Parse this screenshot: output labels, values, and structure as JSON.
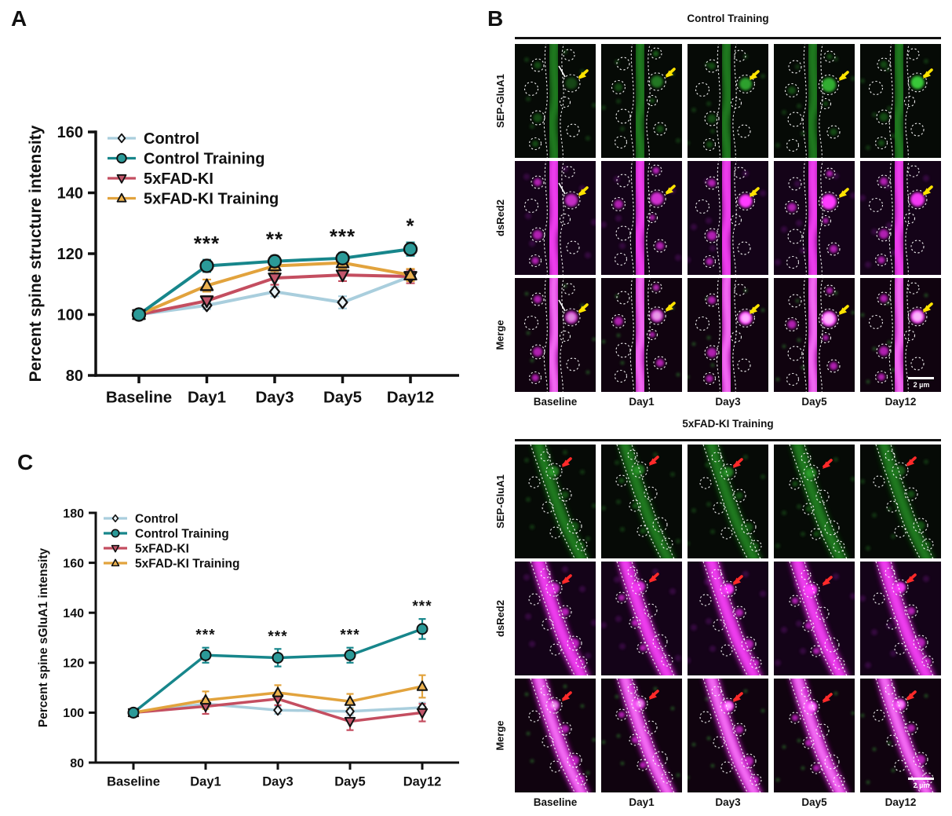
{
  "panels": {
    "a": {
      "label": "A"
    },
    "b": {
      "label": "B",
      "figures": [
        {
          "title": "Control Training",
          "orientation": "vertical",
          "arrow_color": "#ffe400",
          "rows": [
            "SEP-GluA1",
            "dsRed2",
            "Merge"
          ],
          "columns": [
            "Baseline",
            "Day1",
            "Day3",
            "Day5",
            "Day12"
          ],
          "scale_bar": "2 µm"
        },
        {
          "title": "5xFAD-KI Training",
          "orientation": "diagonal",
          "arrow_color": "#ff2a2a",
          "rows": [
            "SEP-GluA1",
            "dsRed2",
            "Merge"
          ],
          "columns": [
            "Baseline",
            "Day1",
            "Day3",
            "Day5",
            "Day12"
          ],
          "scale_bar": "2 µm"
        }
      ],
      "channel_colors": {
        "green": "#2fa12f",
        "magenta": "#e82ce8"
      }
    },
    "c": {
      "label": "C"
    }
  },
  "chart_data": [
    {
      "panel": "A",
      "type": "line",
      "title": "",
      "xlabel": "",
      "ylabel": "Percent spine structure intensity",
      "categories": [
        "Baseline",
        "Day1",
        "Day3",
        "Day5",
        "Day12"
      ],
      "ylim": [
        80,
        160
      ],
      "yticks": [
        80,
        100,
        120,
        140,
        160
      ],
      "grid": false,
      "legend_position": "top-left-inside",
      "series": [
        {
          "name": "Control",
          "color": "#a9cedd",
          "marker": "diamond",
          "marker_fill": "#eaf4f8",
          "values": [
            100,
            103,
            107.5,
            104,
            112.5
          ],
          "errors": [
            0.8,
            1.2,
            1.5,
            2,
            1.5
          ]
        },
        {
          "name": "Control Training",
          "color": "#17868b",
          "marker": "circle",
          "marker_fill": "#2b9a98",
          "values": [
            100,
            116,
            117.5,
            118.5,
            121.5
          ],
          "errors": [
            0.8,
            2,
            1.8,
            1.8,
            2.2
          ]
        },
        {
          "name": "5xFAD-KI",
          "color": "#c44e60",
          "marker": "triangle-down",
          "marker_fill": "#c2566b",
          "values": [
            100,
            104.5,
            112,
            113,
            112.5
          ],
          "errors": [
            0.8,
            1.5,
            2.2,
            2,
            2.2
          ]
        },
        {
          "name": "5xFAD-KI Training",
          "color": "#e2a33d",
          "marker": "triangle-up",
          "marker_fill": "#ecb24f",
          "values": [
            100,
            109.5,
            116,
            117,
            113
          ],
          "errors": [
            0.8,
            2,
            1.8,
            2,
            2
          ]
        }
      ],
      "significance": [
        {
          "category": "Day1",
          "label": "***"
        },
        {
          "category": "Day3",
          "label": "**"
        },
        {
          "category": "Day5",
          "label": "***"
        },
        {
          "category": "Day12",
          "label": "*"
        }
      ]
    },
    {
      "panel": "C",
      "type": "line",
      "title": "",
      "xlabel": "",
      "ylabel": "Percent spine sGluA1 intensity",
      "categories": [
        "Baseline",
        "Day1",
        "Day3",
        "Day5",
        "Day12"
      ],
      "ylim": [
        80,
        180
      ],
      "yticks": [
        80,
        100,
        120,
        140,
        160,
        180
      ],
      "grid": false,
      "legend_position": "top-left-inside",
      "series": [
        {
          "name": "Control",
          "color": "#a9cedd",
          "marker": "diamond",
          "marker_fill": "#eaf4f8",
          "values": [
            100,
            103.5,
            101,
            100.5,
            102
          ],
          "errors": [
            0.8,
            1.5,
            1.5,
            1.5,
            2
          ]
        },
        {
          "name": "Control Training",
          "color": "#17868b",
          "marker": "circle",
          "marker_fill": "#2b9a98",
          "values": [
            100,
            123,
            122,
            123,
            133.5
          ],
          "errors": [
            0.8,
            3,
            3.5,
            3,
            4
          ]
        },
        {
          "name": "5xFAD-KI",
          "color": "#c44e60",
          "marker": "triangle-down",
          "marker_fill": "#c2566b",
          "values": [
            100,
            102.5,
            105.5,
            96.5,
            100
          ],
          "errors": [
            0.8,
            3,
            2.5,
            3.5,
            3.5
          ]
        },
        {
          "name": "5xFAD-KI Training",
          "color": "#e2a33d",
          "marker": "triangle-up",
          "marker_fill": "#ecb24f",
          "values": [
            100,
            105,
            108,
            104.5,
            110.5
          ],
          "errors": [
            0.8,
            3.5,
            3,
            3,
            4.5
          ]
        }
      ],
      "significance": [
        {
          "category": "Day1",
          "label": "***"
        },
        {
          "category": "Day3",
          "label": "***"
        },
        {
          "category": "Day5",
          "label": "***"
        },
        {
          "category": "Day12",
          "label": "***"
        }
      ]
    }
  ]
}
